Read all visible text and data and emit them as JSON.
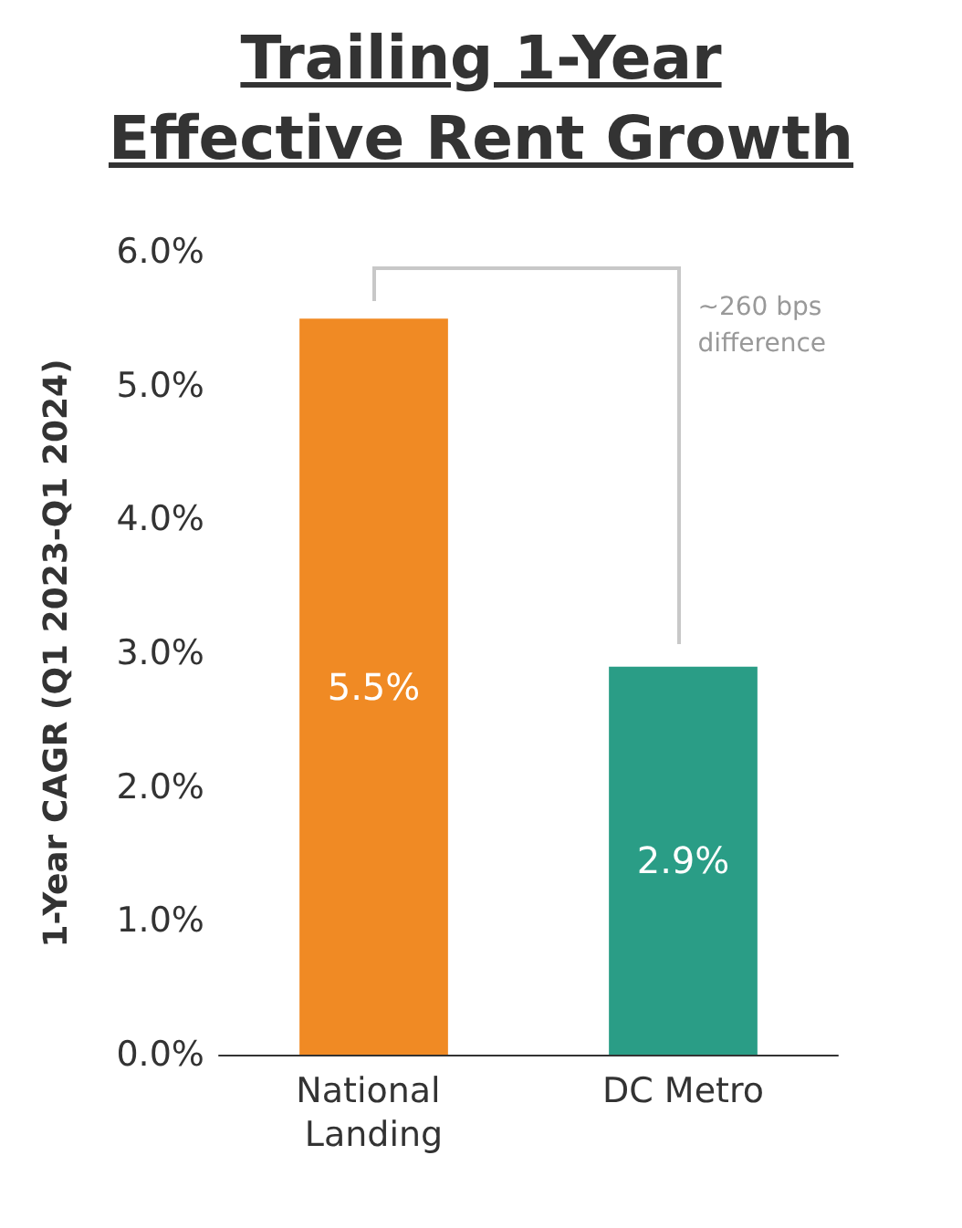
{
  "chart_data": {
    "type": "bar",
    "title": "Trailing 1-Year Effective Rent Growth",
    "ylabel": "1-Year CAGR (Q1 2023-Q1 2024)",
    "categories": [
      "National Landing",
      "DC Metro"
    ],
    "values": [
      5.5,
      2.9
    ],
    "colors": [
      "#f08a24",
      "#2a9d86"
    ],
    "value_labels": [
      "5.5%",
      "2.9%"
    ],
    "ylim": [
      0,
      6
    ],
    "yticks": [
      {
        "value": 0,
        "label": "0.0%"
      },
      {
        "value": 1,
        "label": "1.0%"
      },
      {
        "value": 2,
        "label": "2.0%"
      },
      {
        "value": 3,
        "label": "3.0%"
      },
      {
        "value": 4,
        "label": "4.0%"
      },
      {
        "value": 5,
        "label": "5.0%"
      },
      {
        "value": 6,
        "label": "6.0%"
      }
    ],
    "grid": false,
    "annotations": [
      "~260 bps difference"
    ]
  }
}
